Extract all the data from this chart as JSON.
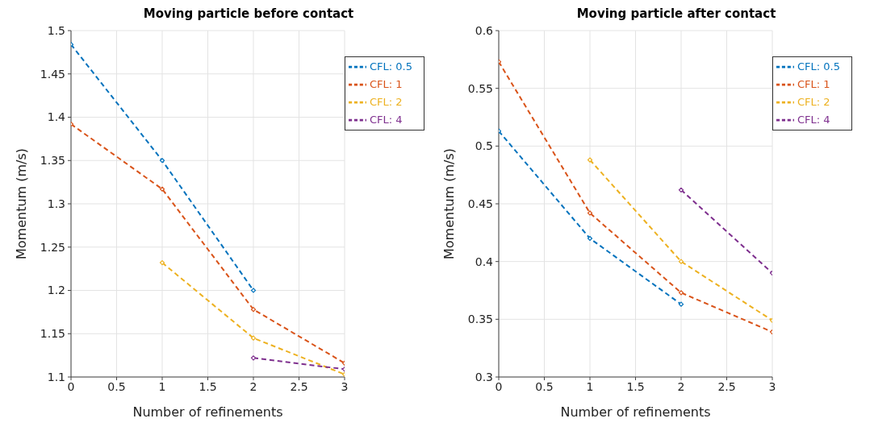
{
  "chart_data": [
    {
      "type": "line",
      "title": "Moving particle before contact",
      "xlabel": "Number of refinements",
      "ylabel": "Momentum (m/s)",
      "x": [
        0,
        1,
        2,
        3
      ],
      "xlim": [
        0,
        3
      ],
      "xticks": [
        0,
        0.5,
        1,
        1.5,
        2,
        2.5,
        3
      ],
      "ylim": [
        1.1,
        1.5
      ],
      "yticks": [
        1.1,
        1.15,
        1.2,
        1.25,
        1.3,
        1.35,
        1.4,
        1.45,
        1.5
      ],
      "grid": true,
      "legend": "top right",
      "marker": "diamond",
      "line_style": "dashed",
      "series": [
        {
          "name": "CFL: 0.5",
          "color": "#0072bd",
          "values": [
            1.484,
            1.35,
            1.2,
            null
          ]
        },
        {
          "name": "CFL: 1",
          "color": "#d95319",
          "values": [
            1.392,
            1.317,
            1.178,
            1.116
          ]
        },
        {
          "name": "CFL: 2",
          "color": "#edb120",
          "values": [
            null,
            1.232,
            1.145,
            1.103
          ]
        },
        {
          "name": "CFL: 4",
          "color": "#7e2f8e",
          "values": [
            null,
            null,
            1.122,
            1.109
          ]
        }
      ]
    },
    {
      "type": "line",
      "title": "Moving particle after contact",
      "xlabel": "Number of refinements",
      "ylabel": "Momentum (m/s)",
      "x": [
        0,
        1,
        2,
        3
      ],
      "xlim": [
        0,
        3
      ],
      "xticks": [
        0,
        0.5,
        1,
        1.5,
        2,
        2.5,
        3
      ],
      "ylim": [
        0.3,
        0.6
      ],
      "yticks": [
        0.3,
        0.35,
        0.4,
        0.45,
        0.5,
        0.55,
        0.6
      ],
      "grid": true,
      "legend": "top right",
      "marker": "diamond",
      "line_style": "dashed",
      "series": [
        {
          "name": "CFL: 0.5",
          "color": "#0072bd",
          "values": [
            0.513,
            0.42,
            0.363,
            null
          ]
        },
        {
          "name": "CFL: 1",
          "color": "#d95319",
          "values": [
            0.573,
            0.442,
            0.373,
            0.339
          ]
        },
        {
          "name": "CFL: 2",
          "color": "#edb120",
          "values": [
            null,
            0.488,
            0.4,
            0.349
          ]
        },
        {
          "name": "CFL: 4",
          "color": "#7e2f8e",
          "values": [
            null,
            null,
            0.462,
            0.39
          ]
        }
      ]
    }
  ]
}
